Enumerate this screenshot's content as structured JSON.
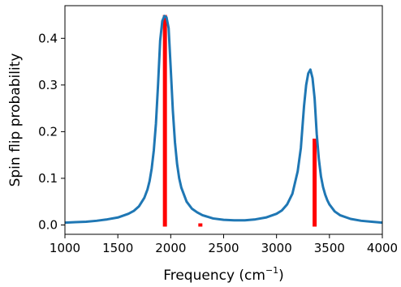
{
  "chart_data": {
    "type": "line",
    "title": "",
    "xlabel": "Frequency (cm",
    "xlabel_sup": "−1",
    "xlabel_close": ")",
    "ylabel": "Spin flip probability",
    "xlim": [
      1000,
      4000
    ],
    "ylim": [
      -0.02,
      0.47
    ],
    "xticks": [
      1000,
      1500,
      2000,
      2500,
      3000,
      3500,
      4000
    ],
    "yticks": [
      0.0,
      0.1,
      0.2,
      0.3,
      0.4
    ],
    "ytick_labels": [
      "0.0",
      "0.1",
      "0.2",
      "0.3",
      "0.4"
    ],
    "grid": false,
    "line_color": "#1f77b4",
    "stick_color": "#ff0000",
    "curve": {
      "x": [
        1000,
        1100,
        1200,
        1300,
        1400,
        1500,
        1600,
        1650,
        1700,
        1750,
        1780,
        1800,
        1820,
        1840,
        1860,
        1880,
        1900,
        1920,
        1940,
        1960,
        1980,
        2000,
        2020,
        2040,
        2060,
        2080,
        2100,
        2150,
        2200,
        2250,
        2300,
        2400,
        2500,
        2600,
        2700,
        2800,
        2900,
        3000,
        3050,
        3100,
        3150,
        3200,
        3230,
        3260,
        3280,
        3300,
        3320,
        3340,
        3360,
        3380,
        3400,
        3420,
        3440,
        3460,
        3480,
        3500,
        3550,
        3600,
        3700,
        3800,
        3900,
        4000
      ],
      "y": [
        0.005,
        0.006,
        0.007,
        0.009,
        0.012,
        0.016,
        0.024,
        0.03,
        0.04,
        0.058,
        0.076,
        0.094,
        0.121,
        0.16,
        0.217,
        0.3,
        0.395,
        0.437,
        0.448,
        0.445,
        0.422,
        0.335,
        0.245,
        0.177,
        0.131,
        0.1,
        0.08,
        0.05,
        0.035,
        0.027,
        0.021,
        0.014,
        0.011,
        0.01,
        0.01,
        0.012,
        0.016,
        0.024,
        0.031,
        0.044,
        0.067,
        0.115,
        0.165,
        0.255,
        0.3,
        0.325,
        0.333,
        0.315,
        0.271,
        0.195,
        0.141,
        0.104,
        0.081,
        0.065,
        0.053,
        0.044,
        0.029,
        0.021,
        0.013,
        0.009,
        0.007,
        0.005
      ]
    },
    "sticks": [
      {
        "x": 1945,
        "y": 0.45
      },
      {
        "x": 2280,
        "y": 0.0
      },
      {
        "x": 3360,
        "y": 0.185
      }
    ]
  }
}
